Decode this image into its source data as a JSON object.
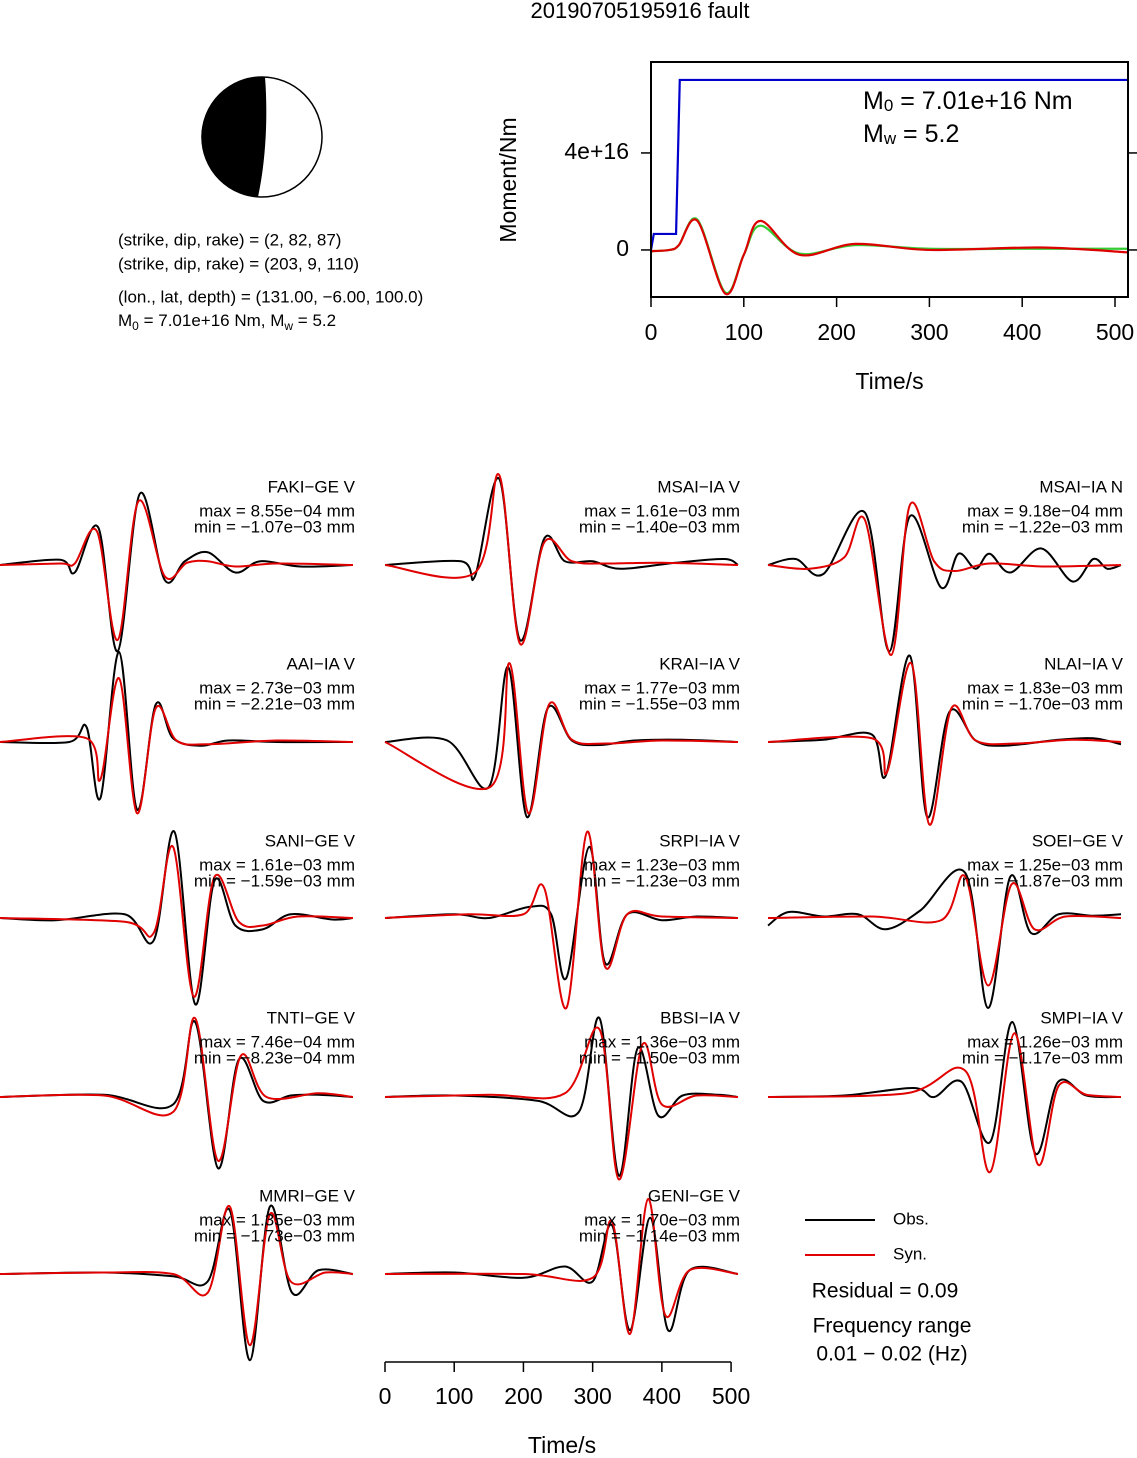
{
  "title": "20190705195916 fault",
  "mechanism": {
    "lines": [
      "(strike, dip, rake) = (2, 82, 87)",
      "(strike, dip, rake) = (203, 9, 110)",
      "(lon., lat, depth) = (131.00, −6.00, 100.0)"
    ],
    "moment_line": [
      {
        "symbol": "M",
        "sub": "0",
        "rest": " = 7.01e+16 Nm, "
      },
      {
        "symbol": "M",
        "sub": "w",
        "rest": " = 5.2"
      }
    ]
  },
  "chart_data": [
    {
      "type": "line",
      "xlabel": "Time/s",
      "ylabel": "Moment/Nm",
      "xlim": [
        0,
        514
      ],
      "xticks": [
        0,
        100,
        200,
        300,
        400,
        500
      ],
      "ylim": [
        -1.94e+16,
        7.75e+16
      ],
      "yticks": [
        0,
        {
          "value": 4e+16,
          "label": "4e+16"
        }
      ],
      "annotations": [
        {
          "symbol": "M",
          "sub": "0",
          "rest": " = 7.01e+16 Nm"
        },
        {
          "symbol": "M",
          "sub": "w",
          "rest": " = 5.2"
        }
      ],
      "series": [
        {
          "color": "#0000cc",
          "x": [
            0,
            3,
            27,
            31,
            514
          ],
          "values": [
            0,
            6600000000000000.0,
            6600000000000000.0,
            7.01e+16,
            7.01e+16
          ]
        },
        {
          "color": "#33cc33",
          "x": [
            0,
            20,
            30,
            50,
            80,
            100,
            118,
            160,
            220,
            300,
            420,
            514
          ],
          "values": [
            -500000000000000.0,
            0,
            2000000000000000.0,
            1.25e+16,
            -1.75e+16,
            -2000000000000000.0,
            1e+16,
            -1500000000000000.0,
            2000000000000000.0,
            500000000000000.0,
            500000000000000.0,
            500000000000000.0
          ]
        },
        {
          "color": "#dd0000",
          "x": [
            0,
            20,
            30,
            50,
            80,
            100,
            118,
            160,
            220,
            300,
            420,
            514
          ],
          "values": [
            -500000000000000.0,
            0,
            2000000000000000.0,
            1.2e+16,
            -1.8e+16,
            -2000000000000000.0,
            1.2e+16,
            -2000000000000000.0,
            2500000000000000.0,
            0,
            1000000000000000.0,
            -1000000000000000.0
          ]
        }
      ]
    },
    {
      "type": "waveforms",
      "xlabel": "Time/s",
      "xlim": [
        0,
        510
      ],
      "xticks": [
        0,
        100,
        200,
        300,
        400,
        500
      ],
      "series": [
        {
          "name": "Obs.",
          "color": "#000000"
        },
        {
          "name": "Syn.",
          "color": "#e00000"
        }
      ],
      "residual": "Residual = 0.09",
      "frequency_title": "Frequency range",
      "frequency_range": "0.01 − 0.02 (Hz)",
      "traces": [
        {
          "label": "FAKI−GE V",
          "max": "max = 8.55e−04 mm",
          "min": "min = −1.07e−03 mm",
          "obs": {
            "x": [
              0,
              87,
              108,
              142,
              170,
              202,
              238,
              267,
              300,
              340,
              376,
              434,
              510
            ],
            "values": [
              0,
              0.07,
              -0.1,
              0.5,
              -1.15,
              0.95,
              -0.2,
              0.05,
              0.17,
              -0.1,
              0.05,
              -0.02,
              0
            ]
          },
          "syn": {
            "x": [
              0,
              87,
              108,
              140,
              170,
              200,
              238,
              270,
              300,
              340,
              400,
              510
            ],
            "values": [
              0,
              0.02,
              0.02,
              0.45,
              -1.0,
              0.85,
              -0.15,
              0.03,
              0.05,
              -0.02,
              0.02,
              0
            ]
          }
        },
        {
          "label": "MSAI−IA V",
          "max": "max = 1.61e−03 mm",
          "min": "min = −1.40e−03 mm",
          "obs": {
            "x": [
              0,
              110,
              130,
              165,
              195,
              230,
              260,
              300,
              340,
              420,
              490,
              510
            ],
            "values": [
              0,
              0.05,
              -0.15,
              1.15,
              -1.0,
              0.35,
              0.05,
              0.05,
              -0.05,
              0.03,
              0.08,
              0
            ]
          },
          "syn": {
            "x": [
              0,
              130,
              165,
              195,
              230,
              270,
              320,
              400,
              510
            ],
            "values": [
              0,
              -0.1,
              1.2,
              -1.05,
              0.3,
              0.05,
              0.02,
              0.03,
              0
            ]
          }
        },
        {
          "label": "MSAI−IA N",
          "max": "max = 9.18e−04 mm",
          "min": "min = −1.22e−03 mm",
          "obs": {
            "x": [
              0,
              40,
              80,
              140,
              175,
              205,
              250,
              275,
              300,
              320,
              350,
              395,
              440,
              470,
              490,
              510
            ],
            "values": [
              0,
              0.08,
              -0.12,
              0.7,
              -1.15,
              0.65,
              -0.3,
              0.15,
              -0.05,
              0.15,
              -0.1,
              0.22,
              -0.22,
              0.08,
              -0.05,
              0
            ]
          },
          "syn": {
            "x": [
              0,
              60,
              110,
              140,
              178,
              205,
              240,
              270,
              320,
              400,
              510
            ],
            "values": [
              0,
              -0.05,
              0.1,
              0.6,
              -1.2,
              0.8,
              0.05,
              -0.08,
              0.02,
              -0.02,
              0
            ]
          }
        },
        {
          "label": "AAI−IA V",
          "max": "max = 2.73e−03 mm",
          "min": "min = −2.21e−03 mm",
          "obs": {
            "x": [
              0,
              100,
              125,
              145,
              172,
              198,
              225,
              250,
              290,
              330,
              400,
              510
            ],
            "values": [
              0,
              0,
              0.2,
              -0.75,
              1.2,
              -0.9,
              0.5,
              0.05,
              -0.05,
              0.02,
              0,
              0
            ]
          },
          "syn": {
            "x": [
              0,
              125,
              145,
              172,
              198,
              225,
              255,
              300,
              400,
              510
            ],
            "values": [
              0,
              0.05,
              -0.5,
              0.85,
              -0.95,
              0.45,
              0.02,
              -0.03,
              0.02,
              0
            ]
          }
        },
        {
          "label": "KRAI−IA V",
          "max": "max = 1.77e−03 mm",
          "min": "min = −1.55e−03 mm",
          "obs": {
            "x": [
              0,
              90,
              150,
              178,
              205,
              235,
              270,
              310,
              360,
              430,
              510
            ],
            "values": [
              0,
              0.02,
              -0.6,
              1.0,
              -1.0,
              0.45,
              0.02,
              -0.04,
              0.02,
              0.03,
              0
            ]
          },
          "syn": {
            "x": [
              0,
              152,
              180,
              207,
              237,
              270,
              320,
              400,
              510
            ],
            "values": [
              0,
              -0.6,
              1.05,
              -0.95,
              0.5,
              0.03,
              -0.02,
              0.02,
              0
            ]
          }
        },
        {
          "label": "NLAI−IA V",
          "max": "max = 1.83e−03 mm",
          "min": "min = −1.70e−03 mm",
          "obs": {
            "x": [
              0,
              80,
              150,
              170,
              205,
              230,
              262,
              300,
              340,
              420,
              470,
              510
            ],
            "values": [
              0,
              0.03,
              0.1,
              -0.45,
              1.15,
              -1.0,
              0.4,
              0.02,
              -0.05,
              0.03,
              0.05,
              -0.03
            ]
          },
          "syn": {
            "x": [
              0,
              150,
              172,
              207,
              233,
              265,
              300,
              360,
              440,
              510
            ],
            "values": [
              0,
              0.05,
              -0.4,
              1.05,
              -1.1,
              0.45,
              0.02,
              -0.02,
              0.03,
              0
            ]
          }
        },
        {
          "label": "SANI−GE V",
          "max": "max = 1.61e−03 mm",
          "min": "min = −1.59e−03 mm",
          "obs": {
            "x": [
              0,
              80,
              180,
              222,
              252,
              282,
              310,
              340,
              380,
              420,
              480,
              510
            ],
            "values": [
              0,
              -0.03,
              0.05,
              -0.3,
              1.15,
              -1.15,
              0.5,
              -0.1,
              -0.15,
              0.05,
              -0.02,
              0
            ]
          },
          "syn": {
            "x": [
              0,
              180,
              222,
              250,
              280,
              310,
              345,
              380,
              430,
              510
            ],
            "values": [
              0,
              -0.05,
              -0.2,
              0.95,
              -1.05,
              0.55,
              -0.05,
              -0.1,
              0.02,
              0
            ]
          }
        },
        {
          "label": "SRPI−IA V",
          "max": "max = 1.23e−03 mm",
          "min": "min = −1.23e−03 mm",
          "obs": {
            "x": [
              0,
              100,
              150,
              210,
              240,
              262,
              295,
              318,
              350,
              400,
              450,
              510
            ],
            "values": [
              0,
              0.05,
              0,
              0.15,
              0.05,
              -0.8,
              0.95,
              -0.6,
              0.05,
              -0.03,
              0.02,
              0
            ]
          },
          "syn": {
            "x": [
              0,
              120,
              200,
              230,
              262,
              292,
              318,
              350,
              400,
              510
            ],
            "values": [
              0,
              0.05,
              0.05,
              0.4,
              -1.2,
              1.15,
              -0.65,
              0.05,
              0.02,
              0
            ]
          }
        },
        {
          "label": "SOEI−GE V",
          "max": "max = 1.25e−03 mm",
          "min": "min = −1.87e−03 mm",
          "obs": {
            "x": [
              0,
              30,
              80,
              130,
              170,
              220,
              285,
              318,
              350,
              380,
              420,
              470,
              510
            ],
            "values": [
              -0.1,
              0.08,
              0.02,
              0.05,
              -0.15,
              0.1,
              0.6,
              -1.2,
              0.55,
              -0.2,
              0.05,
              0.03,
              0.05
            ]
          },
          "syn": {
            "x": [
              0,
              150,
              250,
              285,
              318,
              352,
              385,
              430,
              510
            ],
            "values": [
              0,
              0.02,
              -0.03,
              0.55,
              -0.9,
              0.45,
              -0.15,
              0.02,
              0
            ]
          }
        },
        {
          "label": "TNTI−GE V",
          "max": "max = 7.46e−04 mm",
          "min": "min = −8.23e−04 mm",
          "obs": {
            "x": [
              0,
              150,
              250,
              282,
              315,
              345,
              380,
              420,
              460,
              510
            ],
            "values": [
              0,
              0.03,
              -0.1,
              1.0,
              -0.95,
              0.5,
              -0.05,
              0.02,
              0.03,
              0
            ]
          },
          "syn": {
            "x": [
              0,
              150,
              250,
              282,
              315,
              348,
              385,
              460,
              510
            ],
            "values": [
              0,
              0.02,
              -0.2,
              1.05,
              -0.85,
              0.55,
              0,
              0.05,
              0
            ]
          }
        },
        {
          "label": "BBSI−IA V",
          "max": "max = 1.36e−03 mm",
          "min": "min = −1.50e−03 mm",
          "obs": {
            "x": [
              0,
              100,
              220,
              280,
              310,
              338,
              365,
              395,
              430,
              480,
              510
            ],
            "values": [
              0,
              0.02,
              -0.05,
              -0.2,
              1.05,
              -1.05,
              0.65,
              -0.25,
              0.02,
              0.03,
              0
            ]
          },
          "syn": {
            "x": [
              0,
              150,
              260,
              310,
              338,
              372,
              400,
              450,
              510
            ],
            "values": [
              0,
              0.03,
              0.05,
              0.9,
              -1.1,
              0.7,
              -0.1,
              0.02,
              0
            ]
          }
        },
        {
          "label": "SMPI−IA V",
          "max": "max = 1.26e−03 mm",
          "min": "min = −1.17e−03 mm",
          "obs": {
            "x": [
              0,
              110,
              210,
              240,
              280,
              321,
              353,
              386,
              419,
              460,
              510
            ],
            "values": [
              0,
              0.02,
              0.12,
              0,
              0.2,
              -0.6,
              1.0,
              -0.75,
              0.2,
              0.02,
              0
            ]
          },
          "syn": {
            "x": [
              0,
              200,
              285,
              321,
              356,
              390,
              420,
              460,
              510
            ],
            "values": [
              0,
              0.05,
              0.35,
              -1.0,
              0.85,
              -0.9,
              0.15,
              0.03,
              0
            ]
          }
        },
        {
          "label": "MMRI−GE V",
          "max": "max = 1.35e−03 mm",
          "min": "min = −1.73e−03 mm",
          "obs": {
            "x": [
              0,
              150,
              250,
              300,
              332,
              361,
              390,
              422,
              460,
              510
            ],
            "values": [
              0,
              0.02,
              -0.03,
              -0.1,
              0.85,
              -1.15,
              0.9,
              -0.25,
              0.05,
              0
            ]
          },
          "syn": {
            "x": [
              0,
              150,
              250,
              300,
              332,
              361,
              390,
              420,
              470,
              510
            ],
            "values": [
              0,
              0.02,
              0,
              -0.25,
              0.9,
              -0.95,
              0.8,
              -0.1,
              0.02,
              0
            ]
          }
        },
        {
          "label": "GENI−GE V",
          "max": "max = 1.70e−03 mm",
          "min": "min = −1.14e−03 mm",
          "obs": {
            "x": [
              0,
              100,
              200,
              260,
              300,
              328,
              354,
              383,
              409,
              440,
              510
            ],
            "values": [
              0,
              0.02,
              -0.05,
              0.1,
              -0.1,
              0.65,
              -0.75,
              0.75,
              -0.75,
              0.05,
              0
            ]
          },
          "syn": {
            "x": [
              0,
              200,
              300,
              328,
              354,
              380,
              405,
              440,
              510
            ],
            "values": [
              0,
              0,
              -0.05,
              0.7,
              -0.8,
              1.0,
              -0.55,
              0.05,
              0
            ]
          }
        }
      ]
    }
  ]
}
